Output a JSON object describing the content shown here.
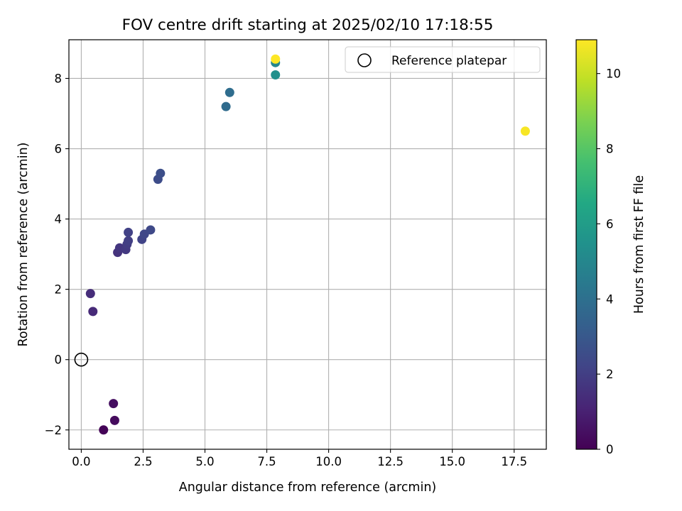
{
  "chart_data": {
    "type": "scatter",
    "title": "FOV centre drift starting at 2025/02/10 17:18:55",
    "xlabel": "Angular distance from reference (arcmin)",
    "ylabel": "Rotation from reference (arcmin)",
    "xlim": [
      -0.5,
      18.8
    ],
    "ylim": [
      -2.55,
      9.1
    ],
    "xticks": [
      0.0,
      2.5,
      5.0,
      7.5,
      10.0,
      12.5,
      15.0,
      17.5
    ],
    "xtick_labels": [
      "0.0",
      "2.5",
      "5.0",
      "7.5",
      "10.0",
      "12.5",
      "15.0",
      "17.5"
    ],
    "yticks": [
      -2,
      0,
      2,
      4,
      6,
      8
    ],
    "ytick_labels": [
      "−2",
      "0",
      "2",
      "4",
      "6",
      "8"
    ],
    "grid": true,
    "legend": {
      "placement": "top-right",
      "entries": [
        "Reference platepar"
      ]
    },
    "reference_point": {
      "x": 0,
      "y": 0
    },
    "colorbar": {
      "label": "Hours from first FF file",
      "colormap": "viridis",
      "range": [
        0,
        10.9
      ],
      "ticks": [
        0,
        2,
        4,
        6,
        8,
        10
      ],
      "tick_labels": [
        "0",
        "2",
        "4",
        "6",
        "8",
        "10"
      ]
    },
    "points": [
      {
        "x": 0.9,
        "y": -2.0,
        "hours": 0.1
      },
      {
        "x": 1.35,
        "y": -1.73,
        "hours": 0.3
      },
      {
        "x": 1.3,
        "y": -1.25,
        "hours": 0.4
      },
      {
        "x": 0.47,
        "y": 1.37,
        "hours": 1.3
      },
      {
        "x": 0.37,
        "y": 1.88,
        "hours": 1.4
      },
      {
        "x": 1.47,
        "y": 3.05,
        "hours": 1.6
      },
      {
        "x": 1.55,
        "y": 3.18,
        "hours": 1.7
      },
      {
        "x": 1.8,
        "y": 3.13,
        "hours": 1.8
      },
      {
        "x": 1.85,
        "y": 3.28,
        "hours": 1.9
      },
      {
        "x": 1.9,
        "y": 3.38,
        "hours": 2.0
      },
      {
        "x": 1.9,
        "y": 3.62,
        "hours": 2.1
      },
      {
        "x": 2.45,
        "y": 3.42,
        "hours": 2.2
      },
      {
        "x": 2.55,
        "y": 3.57,
        "hours": 2.3
      },
      {
        "x": 2.8,
        "y": 3.69,
        "hours": 2.4
      },
      {
        "x": 3.1,
        "y": 5.13,
        "hours": 2.5
      },
      {
        "x": 3.2,
        "y": 5.3,
        "hours": 2.6
      },
      {
        "x": 5.85,
        "y": 7.2,
        "hours": 3.8
      },
      {
        "x": 6.0,
        "y": 7.6,
        "hours": 3.9
      },
      {
        "x": 7.85,
        "y": 8.45,
        "hours": 5.0
      },
      {
        "x": 7.85,
        "y": 8.1,
        "hours": 5.4
      },
      {
        "x": 17.95,
        "y": 6.5,
        "hours": 10.8
      },
      {
        "x": 7.85,
        "y": 8.55,
        "hours": 10.9
      }
    ]
  }
}
